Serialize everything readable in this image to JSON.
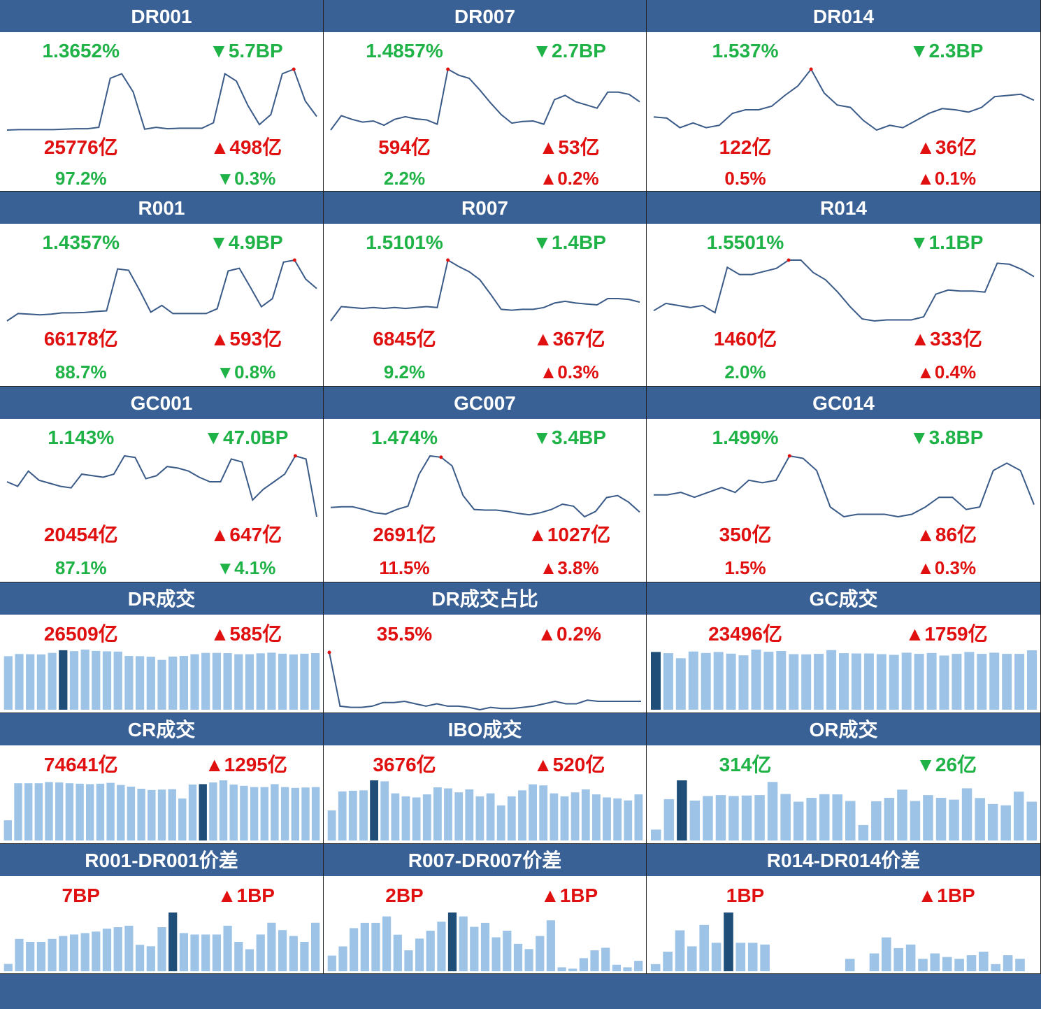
{
  "rate_panels": [
    {
      "title": "DR001",
      "rate": "1.3652%",
      "bp_change": "▼5.7BP",
      "volume": "25776亿",
      "vol_change": "▲498亿",
      "share": "97.2%",
      "share_change": "▼0.3%",
      "colors": {
        "rate": "green",
        "bp_change": "green",
        "volume": "red",
        "vol_change": "red",
        "share": "green",
        "share_change": "green"
      },
      "chart_data": {
        "type": "line",
        "values": [
          1.306,
          1.307,
          1.307,
          1.307,
          1.307,
          1.308,
          1.309,
          1.309,
          1.312,
          1.42,
          1.43,
          1.39,
          1.308,
          1.312,
          1.309,
          1.31,
          1.31,
          1.31,
          1.322,
          1.43,
          1.414,
          1.36,
          1.318,
          1.34,
          1.43,
          1.44,
          1.37,
          1.336
        ],
        "highlight_index": 25
      }
    },
    {
      "title": "DR007",
      "rate": "1.4857%",
      "bp_change": "▼2.7BP",
      "volume": "594亿",
      "vol_change": "▲53亿",
      "share": "2.2%",
      "share_change": "▲0.2%",
      "colors": {
        "rate": "green",
        "bp_change": "green",
        "volume": "red",
        "vol_change": "red",
        "share": "green",
        "share_change": "red"
      },
      "chart_data": {
        "type": "line",
        "values": [
          1.417,
          1.444,
          1.437,
          1.432,
          1.434,
          1.426,
          1.437,
          1.442,
          1.438,
          1.436,
          1.428,
          1.531,
          1.52,
          1.514,
          1.492,
          1.468,
          1.446,
          1.43,
          1.433,
          1.434,
          1.428,
          1.474,
          1.482,
          1.47,
          1.464,
          1.458,
          1.488,
          1.488,
          1.484,
          1.47
        ],
        "highlight_index": 11
      }
    },
    {
      "title": "DR014",
      "rate": "1.537%",
      "bp_change": "▼2.3BP",
      "volume": "122亿",
      "vol_change": "▲36亿",
      "share": "0.5%",
      "share_change": "▲0.1%",
      "colors": {
        "rate": "green",
        "bp_change": "green",
        "volume": "red",
        "vol_change": "red",
        "share": "red",
        "share_change": "red"
      },
      "chart_data": {
        "type": "line",
        "values": [
          1.48,
          1.478,
          1.462,
          1.47,
          1.462,
          1.466,
          1.486,
          1.492,
          1.492,
          1.498,
          1.516,
          1.532,
          1.56,
          1.52,
          1.5,
          1.496,
          1.474,
          1.458,
          1.466,
          1.462,
          1.474,
          1.486,
          1.494,
          1.492,
          1.488,
          1.496,
          1.514,
          1.516,
          1.518,
          1.508
        ],
        "highlight_index": 12
      }
    },
    {
      "title": "R001",
      "rate": "1.4357%",
      "bp_change": "▼4.9BP",
      "volume": "66178亿",
      "vol_change": "▲593亿",
      "share": "88.7%",
      "share_change": "▼0.8%",
      "colors": {
        "rate": "green",
        "bp_change": "green",
        "volume": "red",
        "vol_change": "red",
        "share": "green",
        "share_change": "green"
      },
      "chart_data": {
        "type": "line",
        "values": [
          1.334,
          1.356,
          1.354,
          1.352,
          1.354,
          1.358,
          1.358,
          1.359,
          1.362,
          1.364,
          1.488,
          1.484,
          1.424,
          1.36,
          1.38,
          1.356,
          1.356,
          1.356,
          1.356,
          1.37,
          1.482,
          1.49,
          1.434,
          1.376,
          1.4,
          1.508,
          1.514,
          1.458,
          1.43
        ],
        "highlight_index": 26
      }
    },
    {
      "title": "R007",
      "rate": "1.5101%",
      "bp_change": "▼1.4BP",
      "volume": "6845亿",
      "vol_change": "▲367亿",
      "share": "9.2%",
      "share_change": "▲0.3%",
      "colors": {
        "rate": "green",
        "bp_change": "green",
        "volume": "red",
        "vol_change": "red",
        "share": "green",
        "share_change": "red"
      },
      "chart_data": {
        "type": "line",
        "values": [
          1.434,
          1.466,
          1.464,
          1.462,
          1.464,
          1.462,
          1.464,
          1.462,
          1.464,
          1.466,
          1.464,
          1.57,
          1.556,
          1.544,
          1.526,
          1.494,
          1.46,
          1.458,
          1.46,
          1.46,
          1.464,
          1.474,
          1.478,
          1.474,
          1.472,
          1.47,
          1.484,
          1.484,
          1.482,
          1.476
        ],
        "highlight_index": 11
      }
    },
    {
      "title": "R014",
      "rate": "1.5501%",
      "bp_change": "▼1.1BP",
      "volume": "1460亿",
      "vol_change": "▲333亿",
      "share": "2.0%",
      "share_change": "▲0.4%",
      "colors": {
        "rate": "green",
        "bp_change": "green",
        "volume": "red",
        "vol_change": "red",
        "share": "green",
        "share_change": "red"
      },
      "chart_data": {
        "type": "line",
        "values": [
          1.452,
          1.466,
          1.462,
          1.458,
          1.462,
          1.448,
          1.536,
          1.522,
          1.522,
          1.528,
          1.534,
          1.55,
          1.55,
          1.526,
          1.512,
          1.488,
          1.46,
          1.436,
          1.432,
          1.434,
          1.434,
          1.434,
          1.44,
          1.484,
          1.492,
          1.49,
          1.49,
          1.488,
          1.544,
          1.542,
          1.532,
          1.518
        ],
        "highlight_index": 11
      }
    },
    {
      "title": "GC001",
      "rate": "1.143%",
      "bp_change": "▼47.0BP",
      "volume": "20454亿",
      "vol_change": "▲647亿",
      "share": "87.1%",
      "share_change": "▼4.1%",
      "colors": {
        "rate": "green",
        "bp_change": "green",
        "volume": "red",
        "vol_change": "red",
        "share": "green",
        "share_change": "green"
      },
      "chart_data": {
        "type": "line",
        "values": [
          1.6,
          1.54,
          1.74,
          1.62,
          1.58,
          1.54,
          1.52,
          1.7,
          1.68,
          1.66,
          1.7,
          1.94,
          1.92,
          1.64,
          1.68,
          1.8,
          1.78,
          1.74,
          1.66,
          1.6,
          1.6,
          1.9,
          1.86,
          1.36,
          1.5,
          1.6,
          1.7,
          1.94,
          1.9,
          1.14
        ],
        "highlight_index": 27
      }
    },
    {
      "title": "GC007",
      "rate": "1.474%",
      "bp_change": "▼3.4BP",
      "volume": "2691亿",
      "vol_change": "▲1027亿",
      "share": "11.5%",
      "share_change": "▲3.8%",
      "colors": {
        "rate": "green",
        "bp_change": "green",
        "volume": "red",
        "vol_change": "red",
        "share": "red",
        "share_change": "red"
      },
      "chart_data": {
        "type": "line",
        "values": [
          1.52,
          1.522,
          1.522,
          1.514,
          1.504,
          1.5,
          1.514,
          1.524,
          1.62,
          1.676,
          1.672,
          1.646,
          1.556,
          1.514,
          1.512,
          1.512,
          1.508,
          1.502,
          1.498,
          1.504,
          1.514,
          1.53,
          1.524,
          1.492,
          1.508,
          1.55,
          1.556,
          1.536,
          1.506
        ],
        "highlight_index": 10
      }
    },
    {
      "title": "GC014",
      "rate": "1.499%",
      "bp_change": "▼3.8BP",
      "volume": "350亿",
      "vol_change": "▲86亿",
      "share": "1.5%",
      "share_change": "▲0.3%",
      "colors": {
        "rate": "green",
        "bp_change": "green",
        "volume": "red",
        "vol_change": "red",
        "share": "red",
        "share_change": "red"
      },
      "chart_data": {
        "type": "line",
        "values": [
          1.56,
          1.56,
          1.57,
          1.55,
          1.57,
          1.59,
          1.57,
          1.62,
          1.61,
          1.62,
          1.72,
          1.71,
          1.66,
          1.51,
          1.47,
          1.48,
          1.48,
          1.48,
          1.47,
          1.48,
          1.51,
          1.55,
          1.55,
          1.5,
          1.51,
          1.66,
          1.69,
          1.66,
          1.52
        ],
        "highlight_index": 10
      }
    }
  ],
  "volume_panels": [
    {
      "title": "DR成交",
      "volume": "26509亿",
      "change": "▲585亿",
      "colors": {
        "volume": "red",
        "change": "red"
      },
      "chart_data": {
        "type": "bar",
        "values": [
          24500,
          25500,
          25400,
          25300,
          26000,
          27200,
          26800,
          27500,
          26900,
          26700,
          26600,
          24600,
          24500,
          24200,
          22800,
          24300,
          24600,
          25400,
          26000,
          26000,
          25900,
          25400,
          25400,
          25800,
          26100,
          25600,
          25300,
          25600,
          25900
        ],
        "highlight_index": 5
      }
    },
    {
      "title": "DR成交占比",
      "volume": "35.5%",
      "change": "▲0.2%",
      "colors": {
        "volume": "red",
        "change": "red"
      },
      "chart_data": {
        "type": "line",
        "values": [
          40.0,
          35.5,
          35.4,
          35.4,
          35.5,
          35.8,
          35.8,
          35.9,
          35.7,
          35.5,
          35.7,
          35.5,
          35.5,
          35.4,
          35.2,
          35.4,
          35.3,
          35.3,
          35.4,
          35.5,
          35.7,
          35.9,
          35.7,
          35.7,
          36.0,
          35.9,
          35.9,
          35.9,
          35.9,
          35.9
        ],
        "highlight_index": 0
      }
    },
    {
      "title": "GC成交",
      "volume": "23496亿",
      "change": "▲1759亿",
      "colors": {
        "volume": "red",
        "change": "red"
      },
      "chart_data": {
        "type": "bar",
        "values": [
          24200,
          23700,
          21600,
          24400,
          23800,
          24200,
          23500,
          22800,
          25200,
          24300,
          24600,
          23300,
          23200,
          23400,
          25000,
          23700,
          23600,
          23600,
          23300,
          23000,
          23900,
          23400,
          23800,
          22700,
          23400,
          24200,
          23400,
          23900,
          23400,
          23400,
          24900
        ],
        "highlight_index": 0
      }
    },
    {
      "title": "CR成交",
      "volume": "74641亿",
      "change": "▲1295亿",
      "colors": {
        "volume": "red",
        "change": "red"
      },
      "chart_data": {
        "type": "bar",
        "values": [
          24000,
          68000,
          68000,
          68000,
          69500,
          69000,
          68000,
          67500,
          67000,
          67500,
          68500,
          66000,
          64000,
          61500,
          60000,
          60500,
          61000,
          50000,
          66500,
          67000,
          69000,
          71500,
          66500,
          65000,
          63500,
          63500,
          67000,
          63500,
          62500,
          63000,
          63500
        ],
        "highlight_index": 19
      }
    },
    {
      "title": "IBO成交",
      "volume": "3676亿",
      "change": "▲520亿",
      "colors": {
        "volume": "red",
        "change": "red"
      },
      "chart_data": {
        "type": "bar",
        "values": [
          1500,
          2450,
          2480,
          2500,
          3000,
          2950,
          2350,
          2200,
          2150,
          2300,
          2650,
          2600,
          2400,
          2550,
          2200,
          2350,
          1750,
          2200,
          2500,
          2800,
          2750,
          2350,
          2200,
          2400,
          2550,
          2300,
          2150,
          2100,
          2000,
          2300
        ],
        "highlight_index": 4
      }
    },
    {
      "title": "OR成交",
      "volume": "314亿",
      "change": "▼26亿",
      "colors": {
        "volume": "green",
        "change": "green"
      },
      "chart_data": {
        "type": "bar",
        "values": [
          48,
          182,
          265,
          176,
          196,
          200,
          196,
          198,
          200,
          258,
          205,
          171,
          188,
          204,
          203,
          174,
          68,
          173,
          188,
          224,
          174,
          200,
          188,
          180,
          230,
          187,
          161,
          155,
          215,
          171
        ],
        "highlight_index": 2
      }
    }
  ],
  "spread_panels": [
    {
      "title": "R001-DR001价差",
      "value": "7BP",
      "change": "▲1BP",
      "colors": {
        "value": "red",
        "change": "red"
      },
      "chart_data": {
        "type": "bar",
        "values": [
          0.5,
          2.2,
          2.0,
          2.0,
          2.2,
          2.4,
          2.5,
          2.6,
          2.7,
          2.9,
          3.0,
          3.1,
          1.8,
          1.7,
          3.0,
          4.0,
          2.6,
          2.5,
          2.5,
          2.5,
          3.1,
          2.0,
          1.5,
          2.5,
          3.3,
          2.8,
          2.4,
          2.0,
          3.3
        ],
        "highlight_index": 15
      }
    },
    {
      "title": "R007-DR007价差",
      "value": "2BP",
      "change": "▲1BP",
      "colors": {
        "value": "red",
        "change": "red"
      },
      "chart_data": {
        "type": "bar",
        "values": [
          1.2,
          1.9,
          3.3,
          3.7,
          3.7,
          4.2,
          2.8,
          1.6,
          2.5,
          3.1,
          3.8,
          4.5,
          4.2,
          3.4,
          3.7,
          2.6,
          3.1,
          2.1,
          1.7,
          2.7,
          3.9,
          0.3,
          0.2,
          1.0,
          1.6,
          1.8,
          0.5,
          0.3,
          0.8
        ],
        "highlight_index": 11
      }
    },
    {
      "title": "R014-DR014价差",
      "value": "1BP",
      "change": "▲1BP",
      "colors": {
        "value": "red",
        "change": "red"
      },
      "chart_data": {
        "type": "bar",
        "values": [
          0.4,
          1.1,
          2.3,
          1.4,
          2.6,
          1.6,
          3.3,
          1.6,
          1.6,
          1.5,
          0,
          0,
          0,
          0,
          0,
          0,
          0.7,
          0,
          1.0,
          1.9,
          1.3,
          1.5,
          0.7,
          1.0,
          0.8,
          0.7,
          0.9,
          1.1,
          0.4,
          0.9,
          0.7,
          0
        ],
        "highlight_index": 6
      }
    }
  ],
  "colors": {
    "header": "#3a6195",
    "line": "#3a5a88",
    "bar": "#9dc3e6",
    "bar_highlight": "#1f4e79",
    "marker": "#e01010",
    "green": "#1fb347",
    "red": "#e01010"
  }
}
